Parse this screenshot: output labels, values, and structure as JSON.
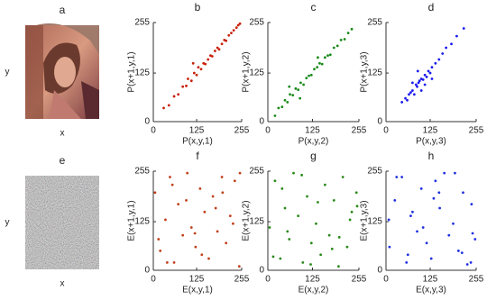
{
  "chart_data": [
    {
      "type": "image",
      "title": "a",
      "x_label": "x",
      "y_label": "y"
    },
    {
      "type": "scatter",
      "title": "b",
      "x_label": "P(x,y,1)",
      "y_label": "P(x+1,y,1)",
      "color": "#c8200a",
      "x": [
        30,
        45,
        60,
        72,
        85,
        95,
        100,
        110,
        118,
        125,
        130,
        138,
        145,
        150,
        158,
        165,
        170,
        178,
        185,
        190,
        198,
        205,
        210,
        218,
        225,
        232,
        240,
        245,
        250,
        115
      ],
      "y": [
        35,
        42,
        65,
        70,
        90,
        92,
        110,
        105,
        125,
        120,
        140,
        135,
        150,
        148,
        160,
        170,
        168,
        182,
        190,
        186,
        200,
        210,
        208,
        222,
        228,
        235,
        242,
        248,
        252,
        150
      ],
      "xlim": [
        0,
        255
      ],
      "ylim": [
        0,
        255
      ],
      "xticks": [
        0,
        125,
        255
      ],
      "yticks": [
        0,
        125,
        255
      ]
    },
    {
      "type": "scatter",
      "title": "c",
      "x_label": "P(x,y,2)",
      "y_label": "P(x+1,y,2)",
      "color": "#1a8a1a",
      "x": [
        20,
        30,
        40,
        48,
        55,
        62,
        70,
        78,
        85,
        92,
        100,
        108,
        115,
        122,
        130,
        138,
        145,
        152,
        160,
        168,
        175,
        185,
        195,
        205,
        215,
        225,
        235,
        60,
        90,
        140
      ],
      "y": [
        15,
        35,
        38,
        55,
        50,
        70,
        68,
        85,
        82,
        100,
        95,
        112,
        118,
        120,
        135,
        140,
        150,
        148,
        165,
        170,
        172,
        190,
        195,
        210,
        212,
        228,
        238,
        90,
        60,
        165
      ],
      "xlim": [
        0,
        255
      ],
      "ylim": [
        0,
        255
      ],
      "xticks": [
        0,
        125,
        255
      ],
      "yticks": [
        0,
        125,
        255
      ]
    },
    {
      "type": "scatter",
      "title": "d",
      "x_label": "P(x,y,3)",
      "y_label": "P(x+1,y,3)",
      "color": "#1a1aee",
      "x": [
        45,
        55,
        60,
        65,
        70,
        75,
        80,
        85,
        88,
        92,
        95,
        100,
        105,
        110,
        115,
        120,
        125,
        130,
        140,
        150,
        160,
        170,
        185,
        200,
        220,
        90,
        100,
        110,
        75,
        130
      ],
      "y": [
        50,
        60,
        55,
        70,
        75,
        80,
        70,
        95,
        90,
        100,
        105,
        110,
        108,
        120,
        115,
        130,
        125,
        140,
        150,
        160,
        175,
        190,
        200,
        220,
        240,
        130,
        80,
        95,
        100,
        110
      ],
      "xlim": [
        0,
        255
      ],
      "ylim": [
        0,
        255
      ],
      "xticks": [
        0,
        125,
        255
      ],
      "yticks": [
        0,
        125,
        255
      ]
    },
    {
      "type": "image",
      "title": "e",
      "x_label": "x",
      "y_label": "y"
    },
    {
      "type": "scatter",
      "title": "f",
      "x_label": "E(x,y,1)",
      "y_label": "E(x+1,y,1)",
      "color": "#c0401a",
      "x": [
        5,
        20,
        35,
        48,
        60,
        72,
        85,
        98,
        110,
        122,
        135,
        148,
        160,
        172,
        185,
        198,
        210,
        222,
        235,
        248,
        15,
        55,
        95,
        140,
        180,
        230,
        40,
        120,
        200,
        250
      ],
      "y": [
        200,
        50,
        130,
        240,
        20,
        170,
        90,
        250,
        110,
        60,
        210,
        150,
        30,
        190,
        100,
        240,
        70,
        140,
        230,
        10,
        80,
        220,
        180,
        40,
        160,
        120,
        20,
        95,
        200,
        250
      ],
      "xlim": [
        0,
        255
      ],
      "ylim": [
        0,
        255
      ],
      "xticks": [
        0,
        125,
        255
      ],
      "yticks": [
        0,
        125,
        255
      ]
    },
    {
      "type": "scatter",
      "title": "g",
      "x_label": "E(x,y,2)",
      "y_label": "E(x+1,y,2)",
      "color": "#2a8a1a",
      "x": [
        5,
        20,
        35,
        48,
        60,
        72,
        85,
        98,
        110,
        122,
        135,
        148,
        160,
        172,
        185,
        198,
        210,
        222,
        235,
        248,
        15,
        55,
        95,
        140,
        180,
        230,
        40,
        120,
        200,
        250
      ],
      "y": [
        110,
        230,
        30,
        160,
        80,
        250,
        140,
        20,
        190,
        70,
        120,
        40,
        220,
        90,
        180,
        10,
        240,
        60,
        150,
        200,
        35,
        100,
        245,
        175,
        55,
        130,
        210,
        15,
        85,
        165
      ],
      "xlim": [
        0,
        255
      ],
      "ylim": [
        0,
        255
      ],
      "xticks": [
        0,
        125,
        255
      ],
      "yticks": [
        0,
        125,
        255
      ]
    },
    {
      "type": "scatter",
      "title": "h",
      "x_label": "E(x,y,3)",
      "y_label": "E(x+1,y,3)",
      "color": "#2030e0",
      "x": [
        10,
        25,
        45,
        58,
        70,
        88,
        100,
        115,
        128,
        140,
        152,
        165,
        178,
        190,
        205,
        218,
        230,
        242,
        252,
        8,
        30,
        62,
        105,
        150,
        195,
        240,
        75,
        135,
        215,
        245
      ],
      "y": [
        60,
        180,
        240,
        20,
        140,
        100,
        210,
        70,
        30,
        230,
        160,
        250,
        90,
        120,
        50,
        200,
        15,
        170,
        80,
        130,
        240,
        40,
        110,
        200,
        250,
        20,
        150,
        185,
        45,
        95
      ],
      "xlim": [
        0,
        255
      ],
      "ylim": [
        0,
        255
      ],
      "xticks": [
        0,
        125,
        255
      ],
      "yticks": [
        0,
        125,
        255
      ]
    }
  ]
}
